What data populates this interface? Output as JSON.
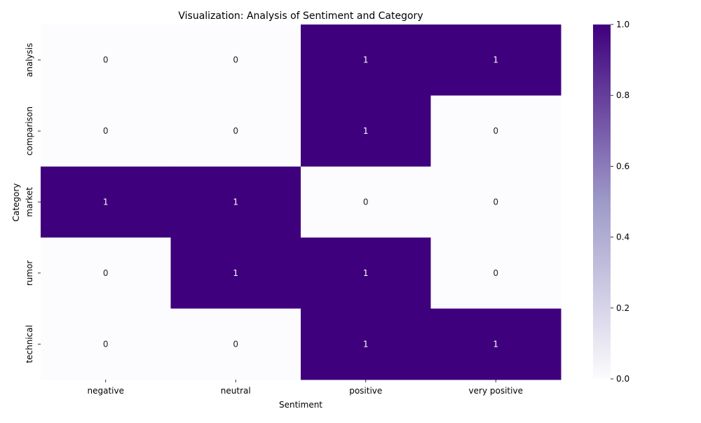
{
  "chart_data": {
    "type": "heatmap",
    "title": "Visualization: Analysis of Sentiment and Category",
    "xlabel": "Sentiment",
    "ylabel": "Category",
    "x_categories": [
      "negative",
      "neutral",
      "positive",
      "very positive"
    ],
    "y_categories": [
      "analysis",
      "comparison",
      "market",
      "rumor",
      "technical"
    ],
    "values": [
      [
        0,
        0,
        1,
        1
      ],
      [
        0,
        0,
        1,
        0
      ],
      [
        1,
        1,
        0,
        0
      ],
      [
        0,
        1,
        1,
        0
      ],
      [
        0,
        0,
        1,
        1
      ]
    ],
    "colorbar": {
      "range": [
        0,
        1
      ],
      "ticks": [
        "0.0",
        "0.2",
        "0.4",
        "0.6",
        "0.8",
        "1.0"
      ],
      "low_color": "#fcfbfd",
      "mid_color": "#9e9ac8",
      "high_color": "#3f007d"
    },
    "annotation_colors": {
      "on_dark": "#ffffff",
      "on_light": "#262626"
    }
  }
}
